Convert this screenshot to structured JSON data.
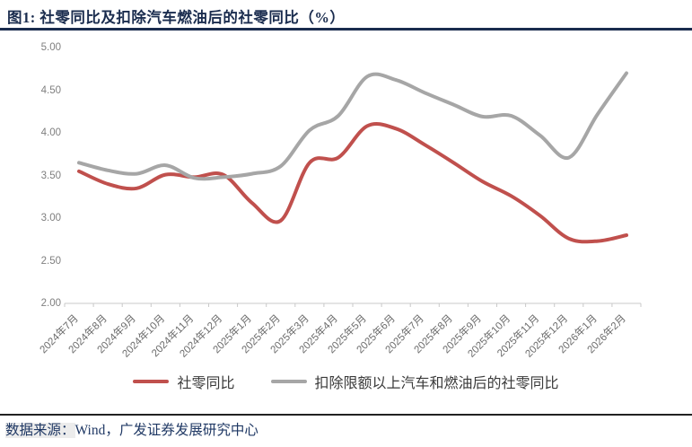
{
  "page": {
    "title": "图1:  社零同比及扣除汽车燃油后的社零同比（%）"
  },
  "colors": {
    "title_navy": "#1A2C4E",
    "series_red": "#C0504D",
    "series_gray": "#A6A6A6",
    "axis_gray": "#C9C9C9",
    "tick_label_gray": "#7F7F7F"
  },
  "chart_data": {
    "type": "line",
    "smooth": true,
    "title": "图1:  社零同比及扣除汽车燃油后的社零同比（%）",
    "categories": [
      "2024年7月",
      "2024年8月",
      "2024年9月",
      "2024年10月",
      "2024年11月",
      "2024年12月",
      "2025年1月",
      "2025年2月",
      "2025年3月",
      "2025年4月",
      "2025年5月",
      "2025年6月",
      "2025年7月",
      "2025年8月",
      "2025年9月",
      "2025年10月",
      "2025年11月",
      "2025年12月",
      "2026年1月",
      "2026年2月"
    ],
    "series": [
      {
        "name": "社零同比",
        "color": "#C0504D",
        "values": [
          3.55,
          3.4,
          3.35,
          3.51,
          3.48,
          3.51,
          3.18,
          2.97,
          3.65,
          3.71,
          4.08,
          4.05,
          3.86,
          3.65,
          3.43,
          3.26,
          3.03,
          2.76,
          2.73,
          2.8
        ]
      },
      {
        "name": "扣除限额以上汽车和燃油后的社零同比",
        "color": "#A6A6A6",
        "values": [
          3.65,
          3.56,
          3.52,
          3.62,
          3.47,
          3.48,
          3.52,
          3.61,
          4.03,
          4.2,
          4.66,
          4.62,
          4.47,
          4.33,
          4.19,
          4.2,
          3.97,
          3.71,
          4.22,
          4.7
        ]
      }
    ],
    "ylim": [
      2.0,
      5.0
    ],
    "yticks": [
      "5.00",
      "4.50",
      "4.00",
      "3.50",
      "3.00",
      "2.50",
      "2.00"
    ],
    "grid": false,
    "legend_position": "bottom-center"
  },
  "footer": {
    "source_label": "数据来源：",
    "source_text": "Wind，广发证券发展研究中心"
  }
}
